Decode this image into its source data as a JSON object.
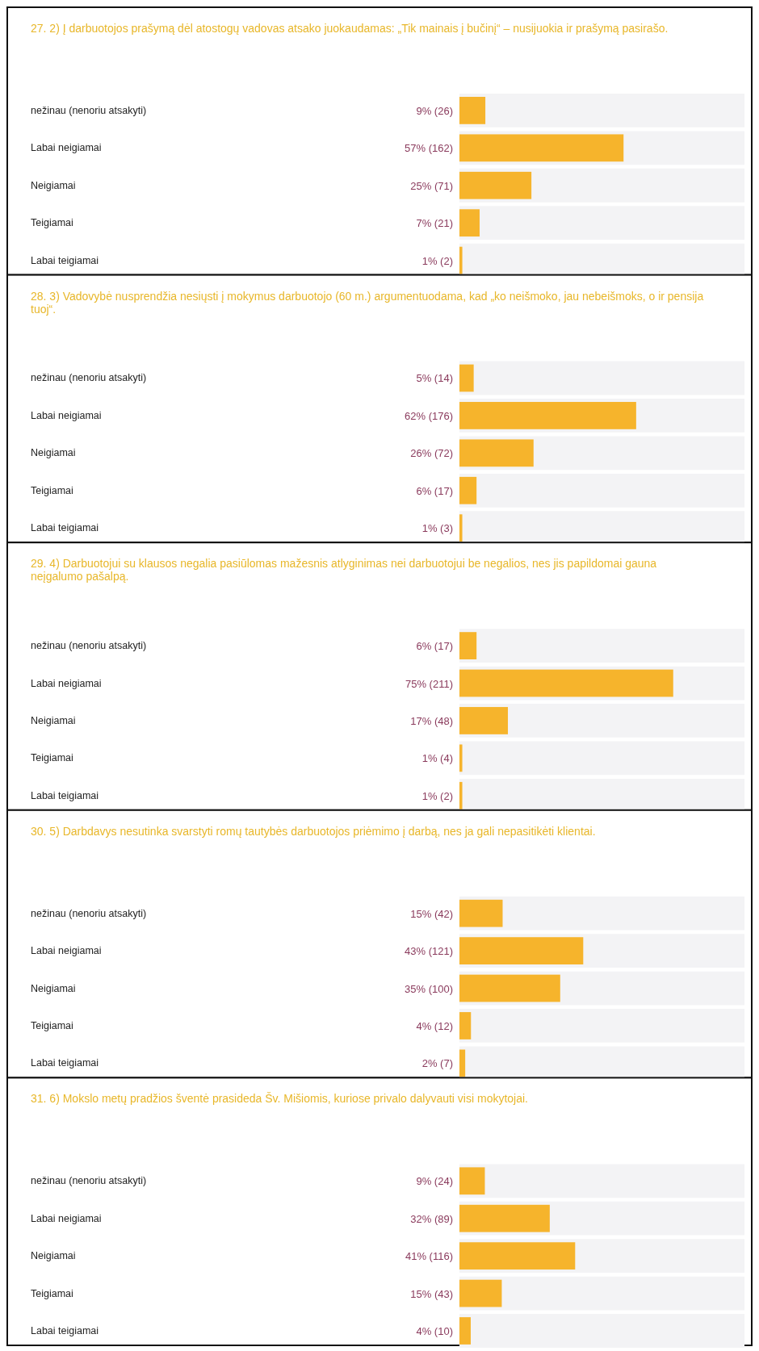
{
  "chart_data": [
    {
      "type": "bar",
      "orientation": "horizontal",
      "title": "27. 2) Į darbuotojos prašymą dėl atostogų vadovas atsako juokaudamas: „Tik mainais į bučinį“ – nusijuokia ir prašymą pasirašo.",
      "categories": [
        "nežinau (nenoriu atsakyti)",
        "Labai neigiamai",
        "Neigiamai",
        "Teigiamai",
        "Labai teigiamai"
      ],
      "values": [
        9,
        57,
        25,
        7,
        1
      ],
      "value_labels": [
        "9% (26)",
        "57% (162)",
        "25% (71)",
        "7% (21)",
        "1% (2)"
      ],
      "color": "#f6b42c"
    },
    {
      "type": "bar",
      "orientation": "horizontal",
      "title": "28. 3) Vadovybė nusprendžia nesiųsti į mokymus darbuotojo (60 m.) argumentuodama, kad „ko neišmoko, jau nebeišmoks, o ir pensija tuoj“.",
      "categories": [
        "nežinau (nenoriu atsakyti)",
        "Labai neigiamai",
        "Neigiamai",
        "Teigiamai",
        "Labai teigiamai"
      ],
      "values": [
        5,
        62,
        26,
        6,
        1
      ],
      "value_labels": [
        "5% (14)",
        "62% (176)",
        "26% (72)",
        "6% (17)",
        "1% (3)"
      ],
      "color": "#f6b42c"
    },
    {
      "type": "bar",
      "orientation": "horizontal",
      "title": "29. 4) Darbuotojui su klausos negalia pasiūlomas mažesnis atlyginimas nei darbuotojui be negalios, nes jis papildomai gauna neįgalumo pašalpą.",
      "categories": [
        "nežinau (nenoriu atsakyti)",
        "Labai neigiamai",
        "Neigiamai",
        "Teigiamai",
        "Labai teigiamai"
      ],
      "values": [
        6,
        75,
        17,
        1,
        1
      ],
      "value_labels": [
        "6% (17)",
        "75% (211)",
        "17% (48)",
        "1% (4)",
        "1% (2)"
      ],
      "color": "#f6b42c"
    },
    {
      "type": "bar",
      "orientation": "horizontal",
      "title": "30. 5) Darbdavys nesutinka svarstyti romų tautybės darbuotojos priėmimo į darbą, nes ja gali nepasitikėti klientai.",
      "categories": [
        "nežinau (nenoriu atsakyti)",
        "Labai neigiamai",
        "Neigiamai",
        "Teigiamai",
        "Labai teigiamai"
      ],
      "values": [
        15,
        43,
        35,
        4,
        2
      ],
      "value_labels": [
        "15% (42)",
        "43% (121)",
        "35% (100)",
        "4% (12)",
        "2% (7)"
      ],
      "color": "#f6b42c"
    },
    {
      "type": "bar",
      "orientation": "horizontal",
      "title": "31. 6) Mokslo metų pradžios šventė prasideda Šv. Mišiomis, kuriose privalo dalyvauti visi mokytojai.",
      "categories": [
        "nežinau (nenoriu atsakyti)",
        "Labai neigiamai",
        "Neigiamai",
        "Teigiamai",
        "Labai teigiamai"
      ],
      "values": [
        9,
        32,
        41,
        15,
        4
      ],
      "value_labels": [
        "9% (24)",
        "32% (89)",
        "41% (116)",
        "15% (43)",
        "4% (10)"
      ],
      "color": "#f6b42c"
    }
  ]
}
